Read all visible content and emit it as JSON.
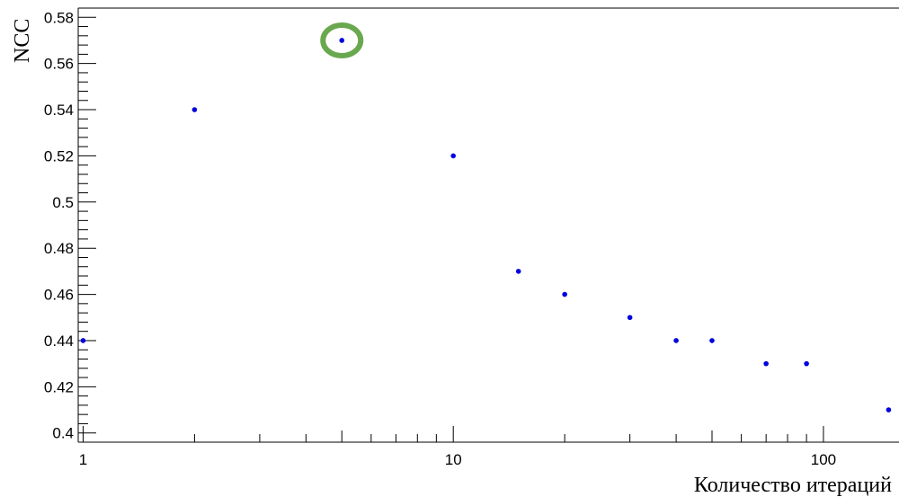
{
  "chart_data": {
    "type": "scatter",
    "title": "",
    "xlabel": "Количество итераций",
    "ylabel": "NCC",
    "x_scale": "log",
    "xlim": [
      0.97,
      160
    ],
    "ylim": [
      0.396,
      0.584
    ],
    "grid": false,
    "x_ticks": [
      {
        "value": 1,
        "label": "1"
      },
      {
        "value": 10,
        "label": "10"
      },
      {
        "value": 100,
        "label": "100"
      }
    ],
    "y_ticks": [
      {
        "value": 0.4,
        "label": "0.4"
      },
      {
        "value": 0.42,
        "label": "0.42"
      },
      {
        "value": 0.44,
        "label": "0.44"
      },
      {
        "value": 0.46,
        "label": "0.46"
      },
      {
        "value": 0.48,
        "label": "0.48"
      },
      {
        "value": 0.5,
        "label": "0.5"
      },
      {
        "value": 0.52,
        "label": "0.52"
      },
      {
        "value": 0.54,
        "label": "0.54"
      },
      {
        "value": 0.56,
        "label": "0.56"
      },
      {
        "value": 0.58,
        "label": "0.58"
      }
    ],
    "series": [
      {
        "x": [
          1,
          2,
          5,
          10,
          15,
          20,
          30,
          40,
          50,
          70,
          90,
          150
        ],
        "y": [
          0.44,
          0.54,
          0.57,
          0.52,
          0.47,
          0.46,
          0.45,
          0.44,
          0.44,
          0.43,
          0.43,
          0.41
        ],
        "color": "#0000dd"
      }
    ],
    "highlight": {
      "x": 5,
      "y": 0.57,
      "color": "#6aa84f"
    }
  }
}
